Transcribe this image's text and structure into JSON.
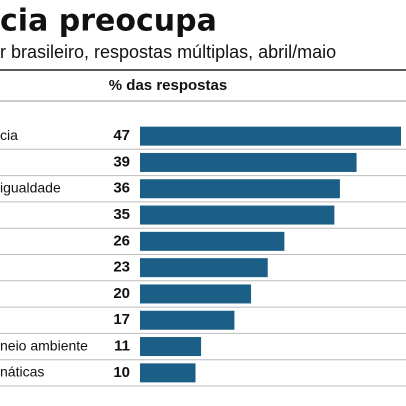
{
  "chart_data": {
    "type": "barh",
    "title": "cia preocupa",
    "subtitle": "r brasileiro, respostas múltiplas, abril/maio",
    "value_header": "% das respostas",
    "categories": [
      "cia",
      null,
      "igualdade",
      null,
      null,
      null,
      null,
      null,
      "neio ambiente",
      "náticas"
    ],
    "values": [
      47,
      39,
      36,
      35,
      26,
      23,
      20,
      17,
      11,
      10
    ],
    "color": "#1b5f87"
  }
}
